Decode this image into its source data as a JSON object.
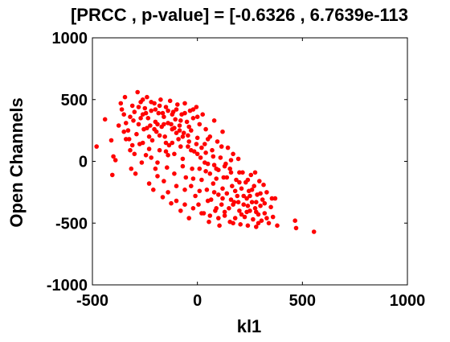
{
  "chart_data": {
    "type": "scatter",
    "title": "[PRCC , p-value] = [-0.6326 , 6.7639e-113",
    "xlabel": "kl1",
    "ylabel": "Open Channels",
    "xlim": [
      -500,
      1000
    ],
    "ylim": [
      -1000,
      1000
    ],
    "xticks": [
      -500,
      0,
      500,
      1000
    ],
    "yticks": [
      -1000,
      -500,
      0,
      500,
      1000
    ],
    "xtick_labels": [
      "-500",
      "0",
      "500",
      "1000"
    ],
    "ytick_labels": [
      "-1000",
      "-500",
      "0",
      "500",
      "1000"
    ],
    "grid": false,
    "marker_color": "#ff0000",
    "axis_color": "#000000",
    "series": [
      {
        "points": [
          [
            -480,
            120
          ],
          [
            -440,
            340
          ],
          [
            -410,
            170
          ],
          [
            -405,
            -110
          ],
          [
            -400,
            40
          ],
          [
            -390,
            10
          ],
          [
            -375,
            290
          ],
          [
            -365,
            470
          ],
          [
            -360,
            420
          ],
          [
            -350,
            380
          ],
          [
            -345,
            520
          ],
          [
            -340,
            310
          ],
          [
            -330,
            250
          ],
          [
            -325,
            180
          ],
          [
            -320,
            90
          ],
          [
            -315,
            -60
          ],
          [
            -310,
            450
          ],
          [
            -305,
            330
          ],
          [
            -300,
            400
          ],
          [
            -295,
            -100
          ],
          [
            -290,
            220
          ],
          [
            -285,
            560
          ],
          [
            -280,
            300
          ],
          [
            -275,
            140
          ],
          [
            -270,
            480
          ],
          [
            -265,
            -10
          ],
          [
            -260,
            380
          ],
          [
            -255,
            260
          ],
          [
            -250,
            430
          ],
          [
            -245,
            50
          ],
          [
            -240,
            520
          ],
          [
            -235,
            350
          ],
          [
            -230,
            -180
          ],
          [
            -225,
            290
          ],
          [
            -220,
            410
          ],
          [
            -215,
            170
          ],
          [
            -210,
            -230
          ],
          [
            -205,
            470
          ],
          [
            -200,
            320
          ],
          [
            -195,
            240
          ],
          [
            -190,
            -120
          ],
          [
            -185,
            390
          ],
          [
            -180,
            90
          ],
          [
            -175,
            500
          ],
          [
            -170,
            280
          ],
          [
            -165,
            -290
          ],
          [
            -160,
            360
          ],
          [
            -155,
            200
          ],
          [
            -150,
            440
          ],
          [
            -145,
            -50
          ],
          [
            -140,
            310
          ],
          [
            -135,
            130
          ],
          [
            -130,
            490
          ],
          [
            -125,
            -340
          ],
          [
            -120,
            260
          ],
          [
            -115,
            400
          ],
          [
            -110,
            60
          ],
          [
            -105,
            340
          ],
          [
            -100,
            -200
          ],
          [
            -95,
            460
          ],
          [
            -90,
            180
          ],
          [
            -85,
            290
          ],
          [
            -80,
            -400
          ],
          [
            -75,
            380
          ],
          [
            -70,
            20
          ],
          [
            -65,
            230
          ],
          [
            -60,
            470
          ],
          [
            -55,
            -130
          ],
          [
            -50,
            320
          ],
          [
            -45,
            120
          ],
          [
            -40,
            -460
          ],
          [
            -35,
            410
          ],
          [
            -30,
            250
          ],
          [
            -25,
            -60
          ],
          [
            -20,
            350
          ],
          [
            -15,
            80
          ],
          [
            -10,
            -280
          ],
          [
            -5,
            440
          ],
          [
            0,
            190
          ],
          [
            5,
            -350
          ],
          [
            10,
            300
          ],
          [
            15,
            30
          ],
          [
            20,
            -150
          ],
          [
            25,
            380
          ],
          [
            30,
            -420
          ],
          [
            35,
            140
          ],
          [
            40,
            260
          ],
          [
            45,
            -230
          ],
          [
            50,
            -20
          ],
          [
            55,
            -490
          ],
          [
            60,
            200
          ],
          [
            65,
            -310
          ],
          [
            70,
            90
          ],
          [
            75,
            -180
          ],
          [
            80,
            330
          ],
          [
            85,
            -400
          ],
          [
            90,
            -60
          ],
          [
            95,
            160
          ],
          [
            100,
            -270
          ],
          [
            105,
            -520
          ],
          [
            110,
            30
          ],
          [
            115,
            -350
          ],
          [
            120,
            240
          ],
          [
            125,
            -130
          ],
          [
            130,
            -440
          ],
          [
            135,
            -20
          ],
          [
            140,
            -260
          ],
          [
            145,
            110
          ],
          [
            150,
            -380
          ],
          [
            155,
            -490
          ],
          [
            160,
            -90
          ],
          [
            165,
            -200
          ],
          [
            170,
            60
          ],
          [
            175,
            -330
          ],
          [
            180,
            -460
          ],
          [
            185,
            -150
          ],
          [
            190,
            -280
          ],
          [
            195,
            20
          ],
          [
            200,
            -400
          ],
          [
            205,
            -510
          ],
          [
            210,
            -220
          ],
          [
            215,
            -90
          ],
          [
            220,
            -350
          ],
          [
            225,
            -450
          ],
          [
            230,
            -170
          ],
          [
            235,
            -300
          ],
          [
            240,
            -520
          ],
          [
            245,
            -240
          ],
          [
            250,
            -400
          ],
          [
            255,
            -110
          ],
          [
            260,
            -330
          ],
          [
            265,
            -470
          ],
          [
            270,
            -200
          ],
          [
            275,
            -380
          ],
          [
            280,
            -530
          ],
          [
            285,
            -270
          ],
          [
            290,
            -430
          ],
          [
            295,
            -160
          ],
          [
            300,
            -360
          ],
          [
            305,
            -480
          ],
          [
            310,
            -310
          ],
          [
            320,
            -420
          ],
          [
            330,
            -250
          ],
          [
            340,
            -500
          ],
          [
            350,
            -370
          ],
          [
            360,
            -450
          ],
          [
            370,
            -300
          ],
          [
            380,
            -520
          ],
          [
            465,
            -480
          ],
          [
            470,
            -540
          ],
          [
            555,
            -570
          ],
          [
            -340,
            180
          ],
          [
            -300,
            60
          ],
          [
            -260,
            150
          ],
          [
            -220,
            30
          ],
          [
            -200,
            -60
          ],
          [
            -180,
            210
          ],
          [
            -160,
            -160
          ],
          [
            -140,
            50
          ],
          [
            -120,
            150
          ],
          [
            -100,
            230
          ],
          [
            -80,
            120
          ],
          [
            -60,
            -230
          ],
          [
            -40,
            160
          ],
          [
            -20,
            -140
          ],
          [
            0,
            60
          ],
          [
            20,
            110
          ],
          [
            40,
            -80
          ],
          [
            60,
            -100
          ],
          [
            80,
            -30
          ],
          [
            100,
            -70
          ],
          [
            120,
            -220
          ],
          [
            140,
            -130
          ],
          [
            160,
            -310
          ],
          [
            180,
            -240
          ],
          [
            200,
            -170
          ],
          [
            220,
            -280
          ],
          [
            240,
            -360
          ],
          [
            260,
            -230
          ],
          [
            280,
            -410
          ],
          [
            300,
            -260
          ],
          [
            -320,
            360
          ],
          [
            -280,
            440
          ],
          [
            -240,
            270
          ],
          [
            -200,
            420
          ],
          [
            -160,
            300
          ],
          [
            -120,
            380
          ],
          [
            -80,
            330
          ],
          [
            -40,
            280
          ],
          [
            0,
            360
          ],
          [
            40,
            70
          ],
          [
            80,
            -250
          ],
          [
            120,
            -300
          ],
          [
            160,
            10
          ],
          [
            200,
            -90
          ],
          [
            240,
            -150
          ],
          [
            280,
            -330
          ],
          [
            320,
            -340
          ],
          [
            -350,
            240
          ],
          [
            -310,
            130
          ],
          [
            -270,
            350
          ],
          [
            -230,
            200
          ],
          [
            -190,
            300
          ],
          [
            -150,
            150
          ],
          [
            -110,
            270
          ],
          [
            -70,
            200
          ],
          [
            -30,
            90
          ],
          [
            10,
            -60
          ],
          [
            50,
            180
          ],
          [
            90,
            -140
          ],
          [
            130,
            -40
          ],
          [
            170,
            -350
          ],
          [
            210,
            -430
          ],
          [
            250,
            -280
          ],
          [
            290,
            -500
          ],
          [
            330,
            -460
          ],
          [
            -260,
            500
          ],
          [
            -220,
            480
          ],
          [
            -180,
            450
          ],
          [
            -140,
            410
          ],
          [
            -100,
            420
          ],
          [
            -60,
            390
          ],
          [
            -20,
            420
          ],
          [
            -140,
            -250
          ],
          [
            -100,
            -320
          ],
          [
            -60,
            -350
          ],
          [
            -20,
            -380
          ],
          [
            20,
            -420
          ],
          [
            60,
            -440
          ],
          [
            100,
            -460
          ],
          [
            -230,
            100
          ],
          [
            -190,
            -10
          ],
          [
            -150,
            80
          ],
          [
            -110,
            -100
          ],
          [
            -70,
            -40
          ],
          [
            -30,
            -200
          ],
          [
            10,
            -240
          ],
          [
            50,
            -320
          ],
          [
            90,
            -380
          ],
          [
            130,
            -410
          ],
          [
            170,
            -500
          ],
          [
            -245,
            390
          ],
          [
            -205,
            260
          ],
          [
            -165,
            390
          ],
          [
            -125,
            300
          ],
          [
            -85,
            250
          ],
          [
            -45,
            210
          ],
          [
            -5,
            140
          ],
          [
            35,
            -10
          ],
          [
            75,
            40
          ],
          [
            115,
            120
          ],
          [
            155,
            -60
          ],
          [
            195,
            -330
          ],
          [
            235,
            -410
          ],
          [
            275,
            -90
          ],
          [
            315,
            -190
          ],
          [
            355,
            -300
          ]
        ]
      }
    ]
  }
}
